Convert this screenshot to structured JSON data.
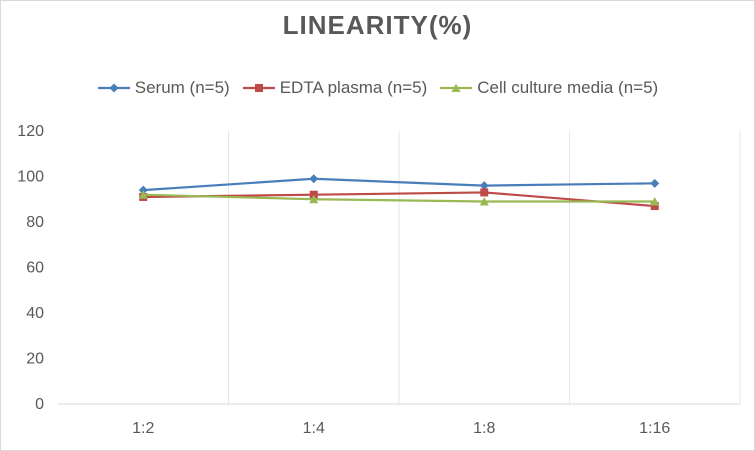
{
  "chart_data": {
    "type": "line",
    "title": "LINEARITY(%)",
    "categories": [
      "1:2",
      "1:4",
      "1:8",
      "1:16"
    ],
    "ylim": [
      0,
      120
    ],
    "yticks": [
      0,
      20,
      40,
      60,
      80,
      100,
      120
    ],
    "grid": "vertical",
    "legend_position": "top",
    "series": [
      {
        "name": "Serum (n=5)",
        "values": [
          94,
          99,
          96,
          97
        ],
        "color": "#4a7ebb",
        "marker": "diamond"
      },
      {
        "name": "EDTA plasma (n=5)",
        "values": [
          91,
          92,
          93,
          87
        ],
        "color": "#be4b48",
        "marker": "square"
      },
      {
        "name": "Cell culture media (n=5)",
        "values": [
          92,
          90,
          89,
          89
        ],
        "color": "#98b954",
        "marker": "triangle"
      }
    ]
  }
}
